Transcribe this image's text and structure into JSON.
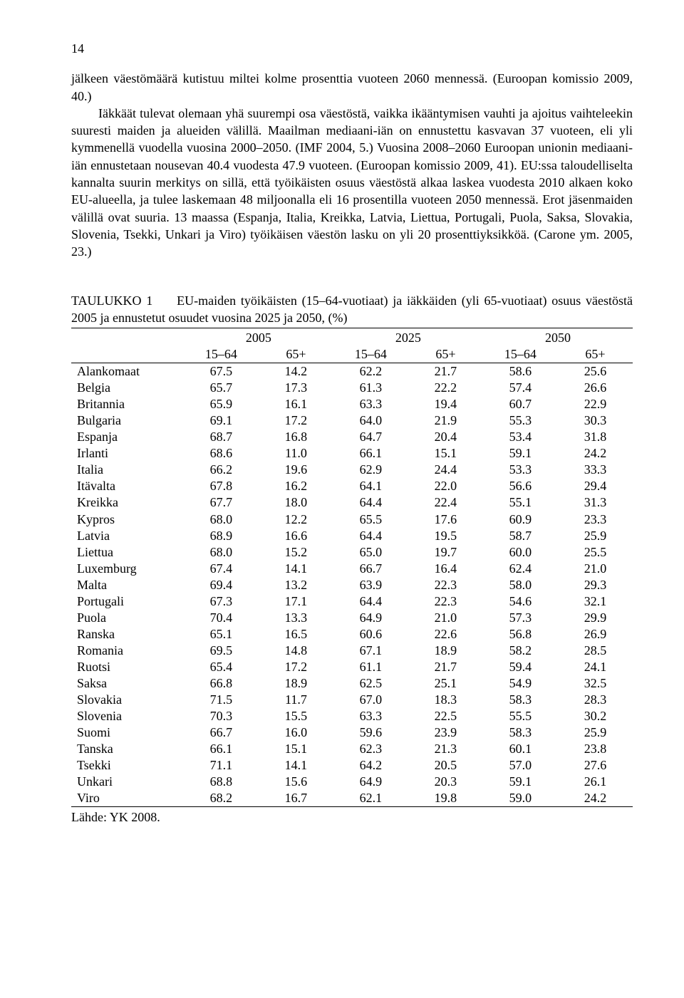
{
  "page_number": "14",
  "paragraph1": "jälkeen väestömäärä kutistuu miltei kolme prosenttia vuoteen 2060 mennessä. (Euroopan komissio 2009, 40.)",
  "paragraph2": "Iäkkäät tulevat olemaan yhä suurempi osa väestöstä, vaikka ikääntymisen vauhti ja ajoitus vaihteleekin suuresti maiden ja alueiden välillä. Maailman mediaani-iän on ennustettu kasvavan 37 vuoteen, eli yli kymmenellä vuodella vuosina 2000–2050. (IMF 2004, 5.) Vuosina 2008–2060 Euroopan unionin mediaani-iän ennustetaan nousevan 40.4 vuodesta 47.9 vuoteen. (Euroopan komissio 2009, 41). EU:ssa taloudelliselta kannalta suurin merkitys on sillä, että työikäisten osuus väestöstä alkaa laskea vuodesta 2010 alkaen koko EU-alueella, ja tulee laskemaan 48 miljoonalla eli 16 prosentilla vuoteen 2050 mennessä. Erot jäsenmaiden välillä ovat suuria. 13 maassa (Espanja, Italia, Kreikka, Latvia, Liettua, Portugali, Puola, Saksa, Slovakia, Slovenia, Tsekki, Unkari ja Viro) työikäisen väestön lasku on yli 20 prosenttiyksikköä. (Carone ym. 2005, 23.)",
  "table": {
    "caption_label": "TAULUKKO 1",
    "caption_text": "EU-maiden työikäisten (15–64-vuotiaat) ja iäkkäiden (yli 65-vuotiaat) osuus väestöstä 2005 ja ennustetut osuudet vuosina 2025 ja 2050, (%)",
    "years": [
      "2005",
      "2025",
      "2050"
    ],
    "subcols": [
      "15–64",
      "65+",
      "15–64",
      "65+",
      "15–64",
      "65+"
    ],
    "rows": [
      {
        "c": "Alankomaat",
        "v": [
          "67.5",
          "14.2",
          "62.2",
          "21.7",
          "58.6",
          "25.6"
        ]
      },
      {
        "c": "Belgia",
        "v": [
          "65.7",
          "17.3",
          "61.3",
          "22.2",
          "57.4",
          "26.6"
        ]
      },
      {
        "c": "Britannia",
        "v": [
          "65.9",
          "16.1",
          "63.3",
          "19.4",
          "60.7",
          "22.9"
        ]
      },
      {
        "c": "Bulgaria",
        "v": [
          "69.1",
          "17.2",
          "64.0",
          "21.9",
          "55.3",
          "30.3"
        ]
      },
      {
        "c": "Espanja",
        "v": [
          "68.7",
          "16.8",
          "64.7",
          "20.4",
          "53.4",
          "31.8"
        ]
      },
      {
        "c": "Irlanti",
        "v": [
          "68.6",
          "11.0",
          "66.1",
          "15.1",
          "59.1",
          "24.2"
        ]
      },
      {
        "c": "Italia",
        "v": [
          "66.2",
          "19.6",
          "62.9",
          "24.4",
          "53.3",
          "33.3"
        ]
      },
      {
        "c": "Itävalta",
        "v": [
          "67.8",
          "16.2",
          "64.1",
          "22.0",
          "56.6",
          "29.4"
        ]
      },
      {
        "c": "Kreikka",
        "v": [
          "67.7",
          "18.0",
          "64.4",
          "22.4",
          "55.1",
          "31.3"
        ]
      },
      {
        "c": "Kypros",
        "v": [
          "68.0",
          "12.2",
          "65.5",
          "17.6",
          "60.9",
          "23.3"
        ]
      },
      {
        "c": "Latvia",
        "v": [
          "68.9",
          "16.6",
          "64.4",
          "19.5",
          "58.7",
          "25.9"
        ]
      },
      {
        "c": "Liettua",
        "v": [
          "68.0",
          "15.2",
          "65.0",
          "19.7",
          "60.0",
          "25.5"
        ]
      },
      {
        "c": "Luxemburg",
        "v": [
          "67.4",
          "14.1",
          "66.7",
          "16.4",
          "62.4",
          "21.0"
        ]
      },
      {
        "c": "Malta",
        "v": [
          "69.4",
          "13.2",
          "63.9",
          "22.3",
          "58.0",
          "29.3"
        ]
      },
      {
        "c": "Portugali",
        "v": [
          "67.3",
          "17.1",
          "64.4",
          "22.3",
          "54.6",
          "32.1"
        ]
      },
      {
        "c": "Puola",
        "v": [
          "70.4",
          "13.3",
          "64.9",
          "21.0",
          "57.3",
          "29.9"
        ]
      },
      {
        "c": "Ranska",
        "v": [
          "65.1",
          "16.5",
          "60.6",
          "22.6",
          "56.8",
          "26.9"
        ]
      },
      {
        "c": "Romania",
        "v": [
          "69.5",
          "14.8",
          "67.1",
          "18.9",
          "58.2",
          "28.5"
        ]
      },
      {
        "c": "Ruotsi",
        "v": [
          "65.4",
          "17.2",
          "61.1",
          "21.7",
          "59.4",
          "24.1"
        ]
      },
      {
        "c": "Saksa",
        "v": [
          "66.8",
          "18.9",
          "62.5",
          "25.1",
          "54.9",
          "32.5"
        ]
      },
      {
        "c": "Slovakia",
        "v": [
          "71.5",
          "11.7",
          "67.0",
          "18.3",
          "58.3",
          "28.3"
        ]
      },
      {
        "c": "Slovenia",
        "v": [
          "70.3",
          "15.5",
          "63.3",
          "22.5",
          "55.5",
          "30.2"
        ]
      },
      {
        "c": "Suomi",
        "v": [
          "66.7",
          "16.0",
          "59.6",
          "23.9",
          "58.3",
          "25.9"
        ]
      },
      {
        "c": "Tanska",
        "v": [
          "66.1",
          "15.1",
          "62.3",
          "21.3",
          "60.1",
          "23.8"
        ]
      },
      {
        "c": "Tsekki",
        "v": [
          "71.1",
          "14.1",
          "64.2",
          "20.5",
          "57.0",
          "27.6"
        ]
      },
      {
        "c": "Unkari",
        "v": [
          "68.8",
          "15.6",
          "64.9",
          "20.3",
          "59.1",
          "26.1"
        ]
      },
      {
        "c": "Viro",
        "v": [
          "68.2",
          "16.7",
          "62.1",
          "19.8",
          "59.0",
          "24.2"
        ]
      }
    ],
    "source": "Lähde: YK 2008."
  }
}
